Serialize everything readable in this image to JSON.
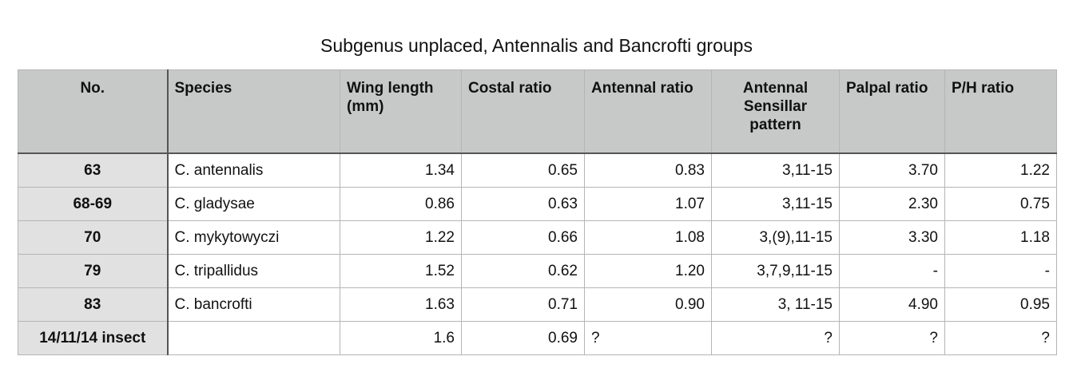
{
  "title": "Subgenus unplaced, Antennalis and Bancrofti groups",
  "table": {
    "header": [
      "No.",
      "Species",
      "Wing length (mm)",
      "Costal ratio",
      "Antennal ratio",
      "Antennal Sensillar pattern",
      "Palpal ratio",
      "P/H ratio"
    ],
    "rows": [
      [
        "63",
        "C. antennalis",
        "1.34",
        "0.65",
        "0.83",
        "3,11-15",
        "3.70",
        "1.22"
      ],
      [
        "68-69",
        "C. gladysae",
        "0.86",
        "0.63",
        "1.07",
        "3,11-15",
        "2.30",
        "0.75"
      ],
      [
        "70",
        "C. mykytowyczi",
        "1.22",
        "0.66",
        "1.08",
        "3,(9),11-15",
        "3.30",
        "1.18"
      ],
      [
        "79",
        "C. tripallidus",
        "1.52",
        "0.62",
        "1.20",
        "3,7,9,11-15",
        "-",
        "-"
      ],
      [
        "83",
        "C. bancrofti",
        "1.63",
        "0.71",
        "0.90",
        "3, 11-15",
        "4.90",
        "0.95"
      ],
      [
        "14/11/14 insect",
        null,
        "1.6",
        "0.69",
        "?",
        "?",
        "?",
        "?"
      ]
    ]
  }
}
